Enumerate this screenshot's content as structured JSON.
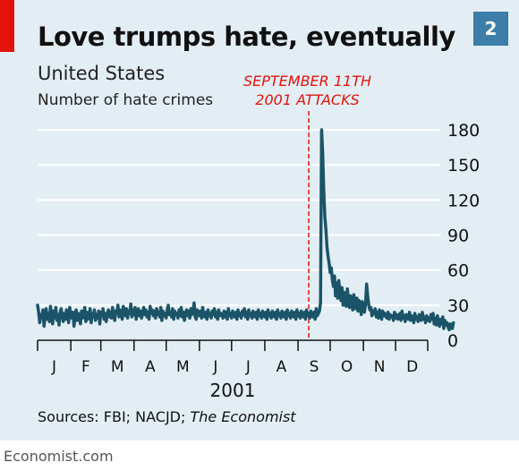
{
  "badge": "2",
  "footer": "Economist.com",
  "chart_data": {
    "type": "line",
    "title": "Love trumps hate, eventually",
    "subtitle": "United States",
    "ylabel": "Number of hate crimes",
    "xlabel": "2001",
    "source_prefix": "Sources: FBI; NACJD; ",
    "source_italic": "The Economist",
    "annotation": [
      "SEPTEMBER 11TH",
      "2001 ATTACKS"
    ],
    "annotation_date": "2001-09-11",
    "ylim": [
      0,
      180
    ],
    "yticks": [
      0,
      30,
      60,
      90,
      120,
      150,
      180
    ],
    "y_axis_side": "right",
    "grid": true,
    "months": [
      "J",
      "F",
      "M",
      "A",
      "M",
      "J",
      "J",
      "A",
      "S",
      "O",
      "N",
      "D"
    ],
    "series": [
      {
        "color": "#1b5468",
        "x_start": "2001-01-01",
        "x_step": "1 day",
        "values": [
          30,
          24,
          15,
          22,
          19,
          26,
          12,
          20,
          27,
          18,
          23,
          16,
          29,
          21,
          14,
          25,
          19,
          28,
          17,
          22,
          13,
          24,
          27,
          20,
          16,
          23,
          18,
          26,
          21,
          15,
          28,
          22,
          19,
          24,
          12,
          20,
          26,
          17,
          23,
          21,
          14,
          25,
          19,
          22,
          28,
          16,
          24,
          18,
          21,
          27,
          15,
          23,
          20,
          26,
          17,
          22,
          19,
          25,
          14,
          24,
          21,
          27,
          18,
          23,
          16,
          22,
          26,
          20,
          24,
          19,
          28,
          21,
          17,
          25,
          23,
          30,
          20,
          26,
          22,
          18,
          29,
          24,
          21,
          27,
          19,
          25,
          23,
          31,
          20,
          26,
          22,
          28,
          18,
          24,
          27,
          21,
          25,
          19,
          23,
          28,
          22,
          26,
          20,
          24,
          18,
          29,
          23,
          26,
          21,
          25,
          19,
          27,
          22,
          24,
          20,
          28,
          17,
          25,
          21,
          23,
          19,
          26,
          30,
          22,
          24,
          20,
          27,
          18,
          25,
          22,
          23,
          19,
          26,
          21,
          28,
          20,
          24,
          17,
          23,
          26,
          21,
          25,
          19,
          27,
          22,
          24,
          32,
          20,
          18,
          26,
          23,
          21,
          25,
          19,
          28,
          22,
          20,
          24,
          18,
          26,
          21,
          23,
          19,
          25,
          22,
          27,
          20,
          24,
          18,
          26,
          21,
          23,
          22,
          19,
          25,
          20,
          24,
          18,
          27,
          21,
          23,
          19,
          25,
          22,
          20,
          24,
          18,
          26,
          21,
          23,
          19,
          25,
          22,
          27,
          20,
          24,
          18,
          26,
          21,
          23,
          19,
          25,
          22,
          20,
          24,
          18,
          26,
          21,
          23,
          19,
          25,
          22,
          20,
          24,
          18,
          26,
          21,
          23,
          19,
          25,
          22,
          20,
          24,
          18,
          26,
          21,
          23,
          19,
          25,
          22,
          20,
          24,
          18,
          26,
          21,
          23,
          19,
          25,
          22,
          20,
          24,
          18,
          26,
          21,
          23,
          19,
          25,
          22,
          20,
          24,
          18,
          26,
          21,
          23,
          19,
          25,
          22,
          20,
          24,
          18,
          27,
          21,
          23,
          25,
          32,
          180,
          160,
          128,
          106,
          95,
          80,
          72,
          66,
          58,
          62,
          52,
          46,
          55,
          38,
          49,
          36,
          51,
          42,
          34,
          45,
          30,
          41,
          33,
          29,
          44,
          35,
          28,
          38,
          31,
          26,
          39,
          32,
          27,
          36,
          25,
          34,
          29,
          22,
          33,
          27,
          24,
          31,
          48,
          38,
          30,
          26,
          28,
          21,
          25,
          23,
          27,
          20,
          24,
          19,
          26,
          22,
          18,
          25,
          21,
          23,
          20,
          19,
          24,
          18,
          22,
          20,
          21,
          17,
          24,
          19,
          22,
          18,
          20,
          23,
          17,
          25,
          19,
          21,
          16,
          22,
          20,
          18,
          24,
          17,
          21,
          19,
          15,
          23,
          18,
          20,
          16,
          22,
          19,
          17,
          24,
          18,
          20,
          15,
          21,
          17,
          19,
          16,
          22,
          18,
          23,
          14,
          19,
          13,
          21,
          16,
          12,
          18,
          14,
          20,
          10,
          17,
          13,
          15,
          11,
          9,
          14,
          12,
          10,
          15
        ]
      }
    ]
  }
}
